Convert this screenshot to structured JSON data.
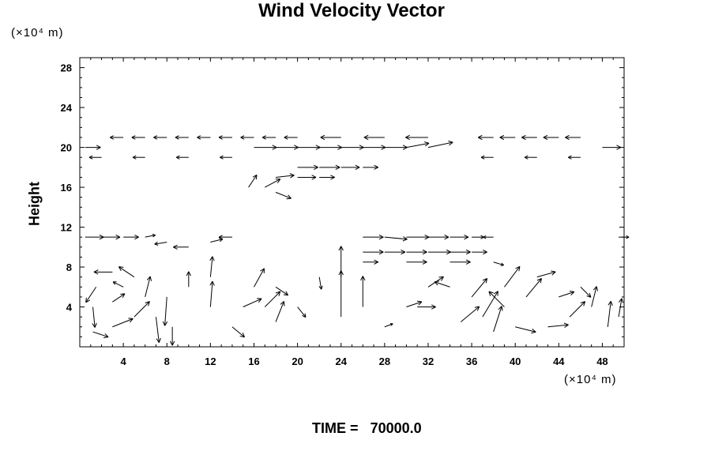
{
  "header": {
    "title": "Wind Velocity Vector",
    "y_unit": "(×10⁴ m)",
    "x_unit": "(×10⁴ m)"
  },
  "footer": {
    "time_label": "TIME =",
    "time_value": "70000.0"
  },
  "chart_data": {
    "type": "scatter",
    "subtype": "vector-field",
    "title": "Wind Velocity Vector",
    "xlabel": "",
    "ylabel": "Height",
    "x_unit": "(×10⁴ m)",
    "y_unit": "(×10⁴ m)",
    "xlim": [
      0,
      50
    ],
    "ylim": [
      0,
      29
    ],
    "xticks": [
      4,
      8,
      12,
      16,
      20,
      24,
      28,
      32,
      36,
      40,
      44,
      48
    ],
    "yticks": [
      4,
      8,
      12,
      16,
      20,
      24,
      28
    ],
    "grid": false,
    "arrow_color": "#000000",
    "vectors": [
      {
        "x": 0.5,
        "y": 11,
        "u": 1.8,
        "v": 0
      },
      {
        "x": 2,
        "y": 11,
        "u": 1.8,
        "v": 0
      },
      {
        "x": 4,
        "y": 11,
        "u": 1.5,
        "v": 0
      },
      {
        "x": 6,
        "y": 11,
        "u": 1.0,
        "v": 0.2
      },
      {
        "x": 8,
        "y": 10.5,
        "u": -1.2,
        "v": -0.2
      },
      {
        "x": 10,
        "y": 10,
        "u": -1.5,
        "v": 0
      },
      {
        "x": 12,
        "y": 10.5,
        "u": 1.2,
        "v": 0.3
      },
      {
        "x": 14,
        "y": 11,
        "u": -1.3,
        "v": 0
      },
      {
        "x": 26,
        "y": 11,
        "u": 2.0,
        "v": 0
      },
      {
        "x": 28,
        "y": 11,
        "u": 2.2,
        "v": -0.2
      },
      {
        "x": 30,
        "y": 11,
        "u": 2.2,
        "v": 0
      },
      {
        "x": 32,
        "y": 11,
        "u": 2.0,
        "v": 0
      },
      {
        "x": 34,
        "y": 11,
        "u": 1.8,
        "v": 0
      },
      {
        "x": 36,
        "y": 11,
        "u": 1.2,
        "v": 0
      },
      {
        "x": 38,
        "y": 11,
        "u": -1.0,
        "v": 0
      },
      {
        "x": 49.5,
        "y": 11,
        "u": 1.0,
        "v": 0
      },
      {
        "x": 26,
        "y": 9.5,
        "u": 2.0,
        "v": 0
      },
      {
        "x": 28,
        "y": 9.5,
        "u": 2.0,
        "v": 0
      },
      {
        "x": 30,
        "y": 9.5,
        "u": 2.0,
        "v": 0
      },
      {
        "x": 32,
        "y": 9.5,
        "u": 2.2,
        "v": 0
      },
      {
        "x": 34,
        "y": 9.5,
        "u": 2.0,
        "v": 0
      },
      {
        "x": 36,
        "y": 9.5,
        "u": 1.5,
        "v": 0
      },
      {
        "x": 26,
        "y": 8.5,
        "u": 1.5,
        "v": 0
      },
      {
        "x": 30,
        "y": 8.5,
        "u": 2.0,
        "v": 0
      },
      {
        "x": 34,
        "y": 8.5,
        "u": 2.0,
        "v": 0
      },
      {
        "x": 38,
        "y": 8.5,
        "u": 1.0,
        "v": -0.3
      },
      {
        "x": 32,
        "y": 21,
        "u": -2.2,
        "v": 0
      },
      {
        "x": 28,
        "y": 21,
        "u": -2.0,
        "v": 0
      },
      {
        "x": 24,
        "y": 21,
        "u": -2.0,
        "v": 0
      },
      {
        "x": 4,
        "y": 21,
        "u": -1.3,
        "v": 0
      },
      {
        "x": 6,
        "y": 21,
        "u": -1.3,
        "v": 0
      },
      {
        "x": 8,
        "y": 21,
        "u": -1.3,
        "v": 0
      },
      {
        "x": 10,
        "y": 21,
        "u": -1.3,
        "v": 0
      },
      {
        "x": 12,
        "y": 21,
        "u": -1.3,
        "v": 0
      },
      {
        "x": 14,
        "y": 21,
        "u": -1.3,
        "v": 0
      },
      {
        "x": 16,
        "y": 21,
        "u": -1.3,
        "v": 0
      },
      {
        "x": 18,
        "y": 21,
        "u": -1.3,
        "v": 0
      },
      {
        "x": 20,
        "y": 21,
        "u": -1.3,
        "v": 0
      },
      {
        "x": 38,
        "y": 21,
        "u": -1.5,
        "v": 0
      },
      {
        "x": 40,
        "y": 21,
        "u": -1.5,
        "v": 0
      },
      {
        "x": 42,
        "y": 21,
        "u": -1.5,
        "v": 0
      },
      {
        "x": 44,
        "y": 21,
        "u": -1.5,
        "v": 0
      },
      {
        "x": 46,
        "y": 21,
        "u": -1.5,
        "v": 0
      },
      {
        "x": 0.5,
        "y": 20,
        "u": 1.5,
        "v": 0
      },
      {
        "x": 16,
        "y": 20,
        "u": 2.2,
        "v": 0
      },
      {
        "x": 18,
        "y": 20,
        "u": 2.2,
        "v": 0
      },
      {
        "x": 20,
        "y": 20,
        "u": 2.2,
        "v": 0
      },
      {
        "x": 22,
        "y": 20,
        "u": 2.2,
        "v": 0
      },
      {
        "x": 24,
        "y": 20,
        "u": 2.2,
        "v": 0
      },
      {
        "x": 26,
        "y": 20,
        "u": 2.2,
        "v": 0
      },
      {
        "x": 28,
        "y": 20,
        "u": 2.2,
        "v": 0
      },
      {
        "x": 30,
        "y": 20,
        "u": 2.2,
        "v": 0.4
      },
      {
        "x": 32,
        "y": 20,
        "u": 2.4,
        "v": 0.5
      },
      {
        "x": 48,
        "y": 20,
        "u": 1.8,
        "v": 0
      },
      {
        "x": 2,
        "y": 19,
        "u": -1.2,
        "v": 0
      },
      {
        "x": 6,
        "y": 19,
        "u": -1.2,
        "v": 0
      },
      {
        "x": 10,
        "y": 19,
        "u": -1.2,
        "v": 0
      },
      {
        "x": 14,
        "y": 19,
        "u": -1.2,
        "v": 0
      },
      {
        "x": 38,
        "y": 19,
        "u": -1.2,
        "v": 0
      },
      {
        "x": 42,
        "y": 19,
        "u": -1.2,
        "v": 0
      },
      {
        "x": 46,
        "y": 19,
        "u": -1.2,
        "v": 0
      },
      {
        "x": 20,
        "y": 18,
        "u": 2.0,
        "v": 0
      },
      {
        "x": 22,
        "y": 18,
        "u": 2.0,
        "v": 0
      },
      {
        "x": 24,
        "y": 18,
        "u": 1.8,
        "v": 0
      },
      {
        "x": 26,
        "y": 18,
        "u": 1.5,
        "v": 0
      },
      {
        "x": 18,
        "y": 17,
        "u": 1.8,
        "v": 0.2
      },
      {
        "x": 20,
        "y": 17,
        "u": 1.8,
        "v": 0
      },
      {
        "x": 22,
        "y": 17,
        "u": 1.5,
        "v": 0
      },
      {
        "x": 17,
        "y": 16,
        "u": 1.5,
        "v": 0.8
      },
      {
        "x": 15.5,
        "y": 16,
        "u": 0.8,
        "v": 1.2
      },
      {
        "x": 18,
        "y": 15.5,
        "u": 1.5,
        "v": -0.6
      },
      {
        "x": 1.2,
        "y": 1.5,
        "u": 1.5,
        "v": -0.5
      },
      {
        "x": 3,
        "y": 2,
        "u": 2.0,
        "v": 0.8
      },
      {
        "x": 5,
        "y": 3,
        "u": 1.5,
        "v": 1.5
      },
      {
        "x": 6,
        "y": 5,
        "u": 0.5,
        "v": 2.0
      },
      {
        "x": 5,
        "y": 7,
        "u": -1.5,
        "v": 1.0
      },
      {
        "x": 3,
        "y": 7.5,
        "u": -1.8,
        "v": 0
      },
      {
        "x": 1.5,
        "y": 6,
        "u": -1.0,
        "v": -1.5
      },
      {
        "x": 1.2,
        "y": 4,
        "u": 0.2,
        "v": -2.0
      },
      {
        "x": 3,
        "y": 4.5,
        "u": 1.2,
        "v": 0.8
      },
      {
        "x": 4,
        "y": 6,
        "u": -1.0,
        "v": 0.5
      },
      {
        "x": 7,
        "y": 3,
        "u": 0.3,
        "v": -2.5
      },
      {
        "x": 8,
        "y": 5,
        "u": -0.2,
        "v": -2.8
      },
      {
        "x": 8.5,
        "y": 2,
        "u": 0,
        "v": -1.8
      },
      {
        "x": 10,
        "y": 6,
        "u": 0,
        "v": 1.5
      },
      {
        "x": 12,
        "y": 4,
        "u": 0.2,
        "v": 2.5
      },
      {
        "x": 12,
        "y": 7,
        "u": 0.2,
        "v": 2.0
      },
      {
        "x": 14,
        "y": 2,
        "u": 1.2,
        "v": -1.0
      },
      {
        "x": 15,
        "y": 4,
        "u": 1.8,
        "v": 0.8
      },
      {
        "x": 16,
        "y": 6,
        "u": 1.0,
        "v": 1.8
      },
      {
        "x": 17,
        "y": 4,
        "u": 1.5,
        "v": 1.5
      },
      {
        "x": 18,
        "y": 2.5,
        "u": 0.8,
        "v": 2.0
      },
      {
        "x": 18,
        "y": 6,
        "u": 1.2,
        "v": -0.8
      },
      {
        "x": 20,
        "y": 4,
        "u": 0.8,
        "v": -1.0
      },
      {
        "x": 22,
        "y": 7,
        "u": 0.2,
        "v": -1.2
      },
      {
        "x": 24,
        "y": 3,
        "u": 0,
        "v": 4.5
      },
      {
        "x": 24,
        "y": 7,
        "u": 0,
        "v": 3.0
      },
      {
        "x": 26,
        "y": 4,
        "u": 0,
        "v": 3.0
      },
      {
        "x": 28,
        "y": 2,
        "u": 0.8,
        "v": 0.3
      },
      {
        "x": 30,
        "y": 4,
        "u": 1.5,
        "v": 0.5
      },
      {
        "x": 32,
        "y": 6,
        "u": 1.5,
        "v": 1.0
      },
      {
        "x": 31,
        "y": 4,
        "u": 1.8,
        "v": 0
      },
      {
        "x": 34,
        "y": 6,
        "u": -1.5,
        "v": 0.5
      },
      {
        "x": 35,
        "y": 2.5,
        "u": 1.8,
        "v": 1.5
      },
      {
        "x": 36,
        "y": 5,
        "u": 1.5,
        "v": 1.8
      },
      {
        "x": 37,
        "y": 3,
        "u": 1.5,
        "v": 2.5
      },
      {
        "x": 38,
        "y": 1.5,
        "u": 0.8,
        "v": 2.5
      },
      {
        "x": 39,
        "y": 4,
        "u": -1.5,
        "v": 1.5
      },
      {
        "x": 39,
        "y": 6,
        "u": 1.5,
        "v": 2.0
      },
      {
        "x": 40,
        "y": 2,
        "u": 2.0,
        "v": -0.5
      },
      {
        "x": 41,
        "y": 5,
        "u": 1.5,
        "v": 1.8
      },
      {
        "x": 42,
        "y": 7,
        "u": 1.8,
        "v": 0.5
      },
      {
        "x": 43,
        "y": 2,
        "u": 2.0,
        "v": 0.2
      },
      {
        "x": 44,
        "y": 5,
        "u": 1.5,
        "v": 0.5
      },
      {
        "x": 45,
        "y": 3,
        "u": 1.5,
        "v": 1.5
      },
      {
        "x": 46,
        "y": 6,
        "u": 1.0,
        "v": -1.0
      },
      {
        "x": 47,
        "y": 4,
        "u": 0.5,
        "v": 2.0
      },
      {
        "x": 48.5,
        "y": 2,
        "u": 0.3,
        "v": 2.5
      },
      {
        "x": 49.5,
        "y": 3,
        "u": 0.3,
        "v": 1.8
      }
    ]
  }
}
